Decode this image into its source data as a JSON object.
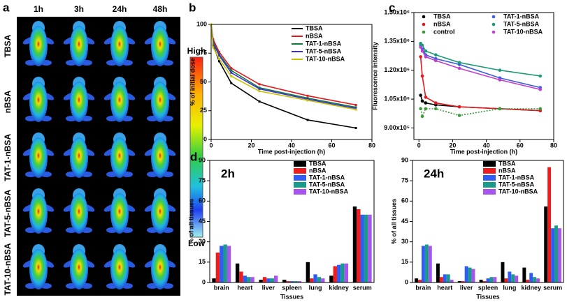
{
  "panel_a": {
    "label": "a",
    "columns": [
      "1h",
      "3h",
      "24h",
      "48h"
    ],
    "rows": [
      "TBSA",
      "nBSA",
      "TAT-1-nBSA",
      "TAT-5-nBSA",
      "TAT-10-nBSA"
    ],
    "scale_high": "High",
    "scale_low": "Low"
  },
  "chart_data": [
    {
      "type": "line",
      "panel_label": "b",
      "xlabel": "Time post-injection (h)",
      "ylabel": "% of initial dose",
      "x": [
        0,
        1,
        4,
        10,
        24,
        48,
        72
      ],
      "xlim": [
        0,
        80
      ],
      "xticks": [
        0,
        20,
        40,
        60,
        80
      ],
      "ylim": [
        0,
        100
      ],
      "yticks": [
        0,
        25,
        50,
        75,
        100
      ],
      "legend": "upper right",
      "legend_columns": 1,
      "series": [
        {
          "name": "TBSA",
          "color": "#000000",
          "values": [
            100,
            82,
            68,
            49,
            33,
            17,
            10
          ]
        },
        {
          "name": "nBSA",
          "color": "#e8151b",
          "values": [
            100,
            87,
            76,
            62,
            48,
            38,
            30
          ]
        },
        {
          "name": "TAT-1-nBSA",
          "color": "#0f7a3c",
          "values": [
            100,
            85,
            74,
            60,
            45,
            36,
            28
          ]
        },
        {
          "name": "TAT-5-nBSA",
          "color": "#3b2fd0",
          "values": [
            100,
            84,
            73,
            58,
            44,
            35,
            27
          ]
        },
        {
          "name": "TAT-10-nBSA",
          "color": "#c8c400",
          "values": [
            100,
            80,
            70,
            55,
            42,
            34,
            26
          ]
        }
      ]
    },
    {
      "type": "line",
      "panel_label": "c",
      "xlabel": "Time post-injection (h)",
      "ylabel": "Fluorescence intensity",
      "x": [
        1,
        2,
        4,
        10,
        24,
        48,
        72
      ],
      "xlim": [
        -3,
        80
      ],
      "xticks": [
        0,
        20,
        40,
        60,
        80
      ],
      "ylim": [
        840000,
        1500000
      ],
      "yticks": [
        {
          "value": 900000,
          "label": "9.00x10⁵"
        },
        {
          "value": 1050000,
          "label": "1.05x10⁶"
        },
        {
          "value": 1200000,
          "label": "1.20x10⁶"
        },
        {
          "value": 1350000,
          "label": "1.35x10⁶"
        },
        {
          "value": 1500000,
          "label": "1.50x10⁶"
        }
      ],
      "legend": "upper left",
      "legend_columns": 2,
      "markers": true,
      "series": [
        {
          "name": "TBSA",
          "color": "#000000",
          "values": [
            1070000,
            1040000,
            1030000,
            1020000,
            1010000,
            1000000,
            990000
          ]
        },
        {
          "name": "nBSA",
          "color": "#e8151b",
          "values": [
            1270000,
            1170000,
            1060000,
            1030000,
            1010000,
            1000000,
            990000
          ]
        },
        {
          "name": "control",
          "color": "#3a9a3a",
          "dashed": true,
          "values": [
            1000000,
            960000,
            1000000,
            1000000,
            965000,
            1000000,
            1000000
          ]
        },
        {
          "name": "TAT-1-nBSA",
          "color": "#3a5fe0",
          "values": [
            1330000,
            1310000,
            1280000,
            1260000,
            1230000,
            1160000,
            1110000
          ]
        },
        {
          "name": "TAT-5-nBSA",
          "color": "#1a9a7a",
          "values": [
            1340000,
            1330000,
            1300000,
            1280000,
            1240000,
            1200000,
            1170000
          ]
        },
        {
          "name": "TAT-10-nBSA",
          "color": "#c040d0",
          "values": [
            1320000,
            1300000,
            1270000,
            1250000,
            1210000,
            1150000,
            1100000
          ]
        }
      ]
    },
    {
      "type": "bar",
      "panel_label": "d",
      "annotation": "2h",
      "xlabel": "Tissues",
      "ylabel": "% of all tissues",
      "categories": [
        "brain",
        "heart",
        "liver",
        "spleen",
        "lung",
        "kidney",
        "serum"
      ],
      "ylim": [
        0,
        90
      ],
      "yticks": [
        0,
        15,
        30,
        45,
        60,
        75,
        90
      ],
      "legend": "upper right",
      "series": [
        {
          "name": "TBSA",
          "color": "#000000",
          "values": [
            3,
            14,
            2,
            2,
            15,
            5,
            56
          ]
        },
        {
          "name": "nBSA",
          "color": "#ee1c1c",
          "values": [
            22,
            8,
            4,
            1,
            3,
            12,
            54
          ]
        },
        {
          "name": "TAT-1-nBSA",
          "color": "#2f5cf5",
          "values": [
            27,
            5,
            3,
            1,
            6,
            13,
            50
          ]
        },
        {
          "name": "TAT-5-nBSA",
          "color": "#1a9a8a",
          "values": [
            28,
            4,
            3,
            1,
            4,
            14,
            50
          ]
        },
        {
          "name": "TAT-10-nBSA",
          "color": "#a855f0",
          "values": [
            27,
            4,
            5,
            1,
            3,
            14,
            50
          ]
        }
      ]
    },
    {
      "type": "bar",
      "annotation": "24h",
      "xlabel": "Tissues",
      "ylabel": "% of all tissues",
      "categories": [
        "brain",
        "heart",
        "liver",
        "spleen",
        "lung",
        "kidney",
        "serum"
      ],
      "ylim": [
        0,
        90
      ],
      "yticks": [
        0,
        15,
        30,
        45,
        60,
        75,
        90
      ],
      "legend": "upper right",
      "series": [
        {
          "name": "TBSA",
          "color": "#000000",
          "values": [
            3,
            14,
            1,
            2,
            15,
            11,
            56
          ]
        },
        {
          "name": "nBSA",
          "color": "#ee1c1c",
          "values": [
            2,
            4,
            1,
            1,
            3,
            2,
            85
          ]
        },
        {
          "name": "TAT-1-nBSA",
          "color": "#2f5cf5",
          "values": [
            27,
            6,
            12,
            3,
            8,
            7,
            40
          ]
        },
        {
          "name": "TAT-5-nBSA",
          "color": "#1a9a8a",
          "values": [
            28,
            6,
            11,
            4,
            6,
            4,
            42
          ]
        },
        {
          "name": "TAT-10-nBSA",
          "color": "#a855f0",
          "values": [
            27,
            2,
            10,
            4,
            5,
            3,
            40
          ]
        }
      ]
    }
  ]
}
